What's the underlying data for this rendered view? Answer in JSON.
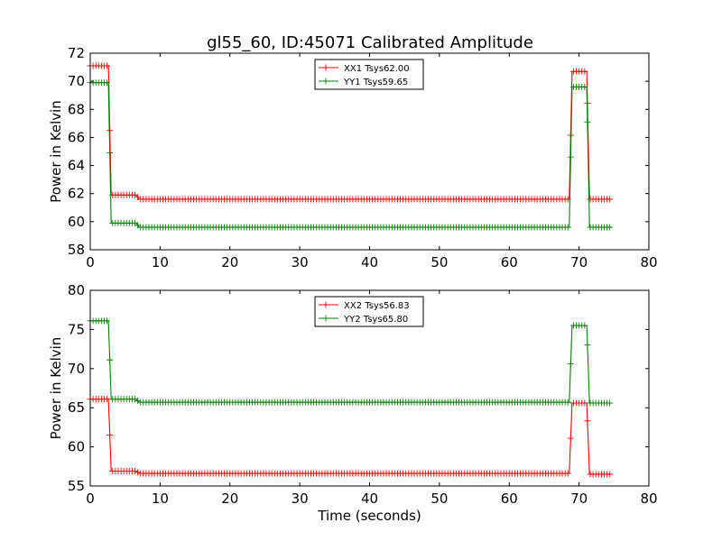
{
  "title": "gl55_60, ID:45071 Calibrated Amplitude",
  "colors": {
    "xx": "#ff0000",
    "yy": "#008000"
  },
  "chart_data": [
    {
      "type": "line",
      "title": "gl55_60, ID:45071 Calibrated Amplitude",
      "xlabel": "",
      "ylabel": "Power in Kelvin",
      "xlim": [
        0,
        80
      ],
      "ylim": [
        58,
        72
      ],
      "xticks": [
        0,
        10,
        20,
        30,
        40,
        50,
        60,
        70,
        80
      ],
      "yticks": [
        58,
        60,
        62,
        64,
        66,
        68,
        70,
        72
      ],
      "grid": false,
      "legend_position": "top-center",
      "series": [
        {
          "name": "XX1 Tsys62.00",
          "color": "#ff0000",
          "x": [
            0,
            2.6,
            3.0,
            6.6,
            7.0,
            68.6,
            69.0,
            71.1,
            71.5,
            74.6
          ],
          "y": [
            71.1,
            71.1,
            61.9,
            61.9,
            61.6,
            61.6,
            70.7,
            70.7,
            61.6,
            61.6
          ]
        },
        {
          "name": "YY1 Tsys59.65",
          "color": "#008000",
          "x": [
            0,
            2.6,
            3.0,
            6.6,
            7.0,
            68.6,
            69.0,
            71.1,
            71.5,
            74.6
          ],
          "y": [
            69.9,
            69.9,
            59.9,
            59.9,
            59.6,
            59.6,
            69.6,
            69.6,
            59.6,
            59.6
          ]
        }
      ]
    },
    {
      "type": "line",
      "title": "",
      "xlabel": "Time (seconds)",
      "ylabel": "Power in Kelvin",
      "xlim": [
        0,
        80
      ],
      "ylim": [
        55,
        80
      ],
      "xticks": [
        0,
        10,
        20,
        30,
        40,
        50,
        60,
        70,
        80
      ],
      "yticks": [
        55,
        60,
        65,
        70,
        75,
        80
      ],
      "grid": false,
      "legend_position": "top-center",
      "series": [
        {
          "name": "XX2 Tsys56.83",
          "color": "#ff0000",
          "x": [
            0,
            2.6,
            3.0,
            6.6,
            7.0,
            68.6,
            69.0,
            71.1,
            71.5,
            74.6
          ],
          "y": [
            66.1,
            66.1,
            56.9,
            56.9,
            56.6,
            56.6,
            65.6,
            65.6,
            56.5,
            56.5
          ]
        },
        {
          "name": "YY2 Tsys65.80",
          "color": "#008000",
          "x": [
            0,
            2.6,
            3.0,
            6.6,
            7.0,
            68.6,
            69.0,
            71.1,
            71.5,
            74.6
          ],
          "y": [
            76.1,
            76.1,
            66.1,
            66.1,
            65.7,
            65.7,
            75.5,
            75.5,
            65.6,
            65.6
          ]
        }
      ]
    }
  ]
}
